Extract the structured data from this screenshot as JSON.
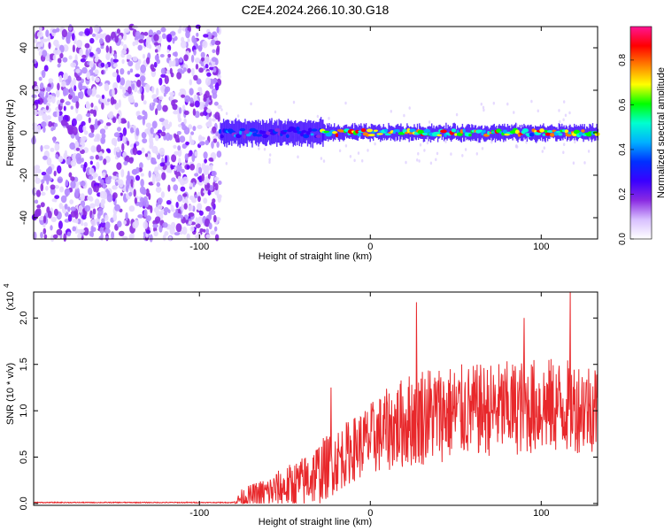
{
  "figure": {
    "title": "C2E4.2024.266.10.30.G18"
  },
  "chart_data": [
    {
      "type": "heatmap",
      "xlabel": "Height of straight line (km)",
      "ylabel": "Frequency (Hz)",
      "xlim": [
        -197,
        133
      ],
      "ylim": [
        -50,
        50
      ],
      "x_ticks": [
        -100,
        0,
        100
      ],
      "y_ticks": [
        -40,
        -20,
        0,
        20,
        40
      ],
      "colorbar": {
        "label": "Normalized spectral amplitude",
        "range": [
          0.0,
          0.95
        ],
        "ticks": [
          "0.0",
          "0.2",
          "0.4",
          "0.6",
          "0.8"
        ],
        "colormap": [
          "#ffffff",
          "#d8c0ff",
          "#8a2be2",
          "#3a00ff",
          "#0030ff",
          "#00b0ff",
          "#00ffd0",
          "#00ff00",
          "#ffff00",
          "#ff8000",
          "#ff0000",
          "#ff1493"
        ]
      },
      "regions": [
        {
          "x_range": [
            -197,
            -88
          ],
          "description_value": "noise",
          "freq_range": [
            -50,
            50
          ],
          "amplitude": 0.1
        },
        {
          "x_range": [
            -88,
            -28
          ],
          "freq_center": 0,
          "freq_width": 10,
          "amplitude": 0.4
        },
        {
          "x_range": [
            -28,
            133
          ],
          "freq_center": 0,
          "freq_width": 6,
          "amplitude": 0.85
        }
      ]
    },
    {
      "type": "line",
      "xlabel": "Height of straight line (km)",
      "ylabel": "SNR (10 * v/v)",
      "y_multiplier": "(x10",
      "y_exponent": "4",
      "xlim": [
        -197,
        133
      ],
      "ylim": [
        -0.02,
        2.28
      ],
      "x_ticks": [
        -100,
        0,
        100
      ],
      "y_ticks": [
        "0.0",
        "0.5",
        "1.0",
        "1.5",
        "2.0"
      ],
      "series": [
        {
          "color": "#e8282b",
          "envelope": [
            {
              "x": -197,
              "base": 0.01,
              "spread": 0.01
            },
            {
              "x": -80,
              "base": 0.01,
              "spread": 0.01
            },
            {
              "x": -75,
              "base": 0.05,
              "spread": 0.2
            },
            {
              "x": -60,
              "base": 0.1,
              "spread": 0.35
            },
            {
              "x": -40,
              "base": 0.2,
              "spread": 0.55
            },
            {
              "x": -30,
              "base": 0.3,
              "spread": 0.7
            },
            {
              "x": -10,
              "base": 0.55,
              "spread": 0.7
            },
            {
              "x": 10,
              "base": 0.75,
              "spread": 0.9
            },
            {
              "x": 30,
              "base": 0.9,
              "spread": 1.1
            },
            {
              "x": 60,
              "base": 0.95,
              "spread": 1.0
            },
            {
              "x": 100,
              "base": 1.0,
              "spread": 1.05
            },
            {
              "x": 133,
              "base": 1.0,
              "spread": 1.0
            }
          ],
          "peaks": [
            {
              "x": -23,
              "y": 1.25
            },
            {
              "x": 27,
              "y": 2.17
            },
            {
              "x": 117,
              "y": 2.28
            },
            {
              "x": 90,
              "y": 2.0
            }
          ]
        }
      ]
    }
  ]
}
